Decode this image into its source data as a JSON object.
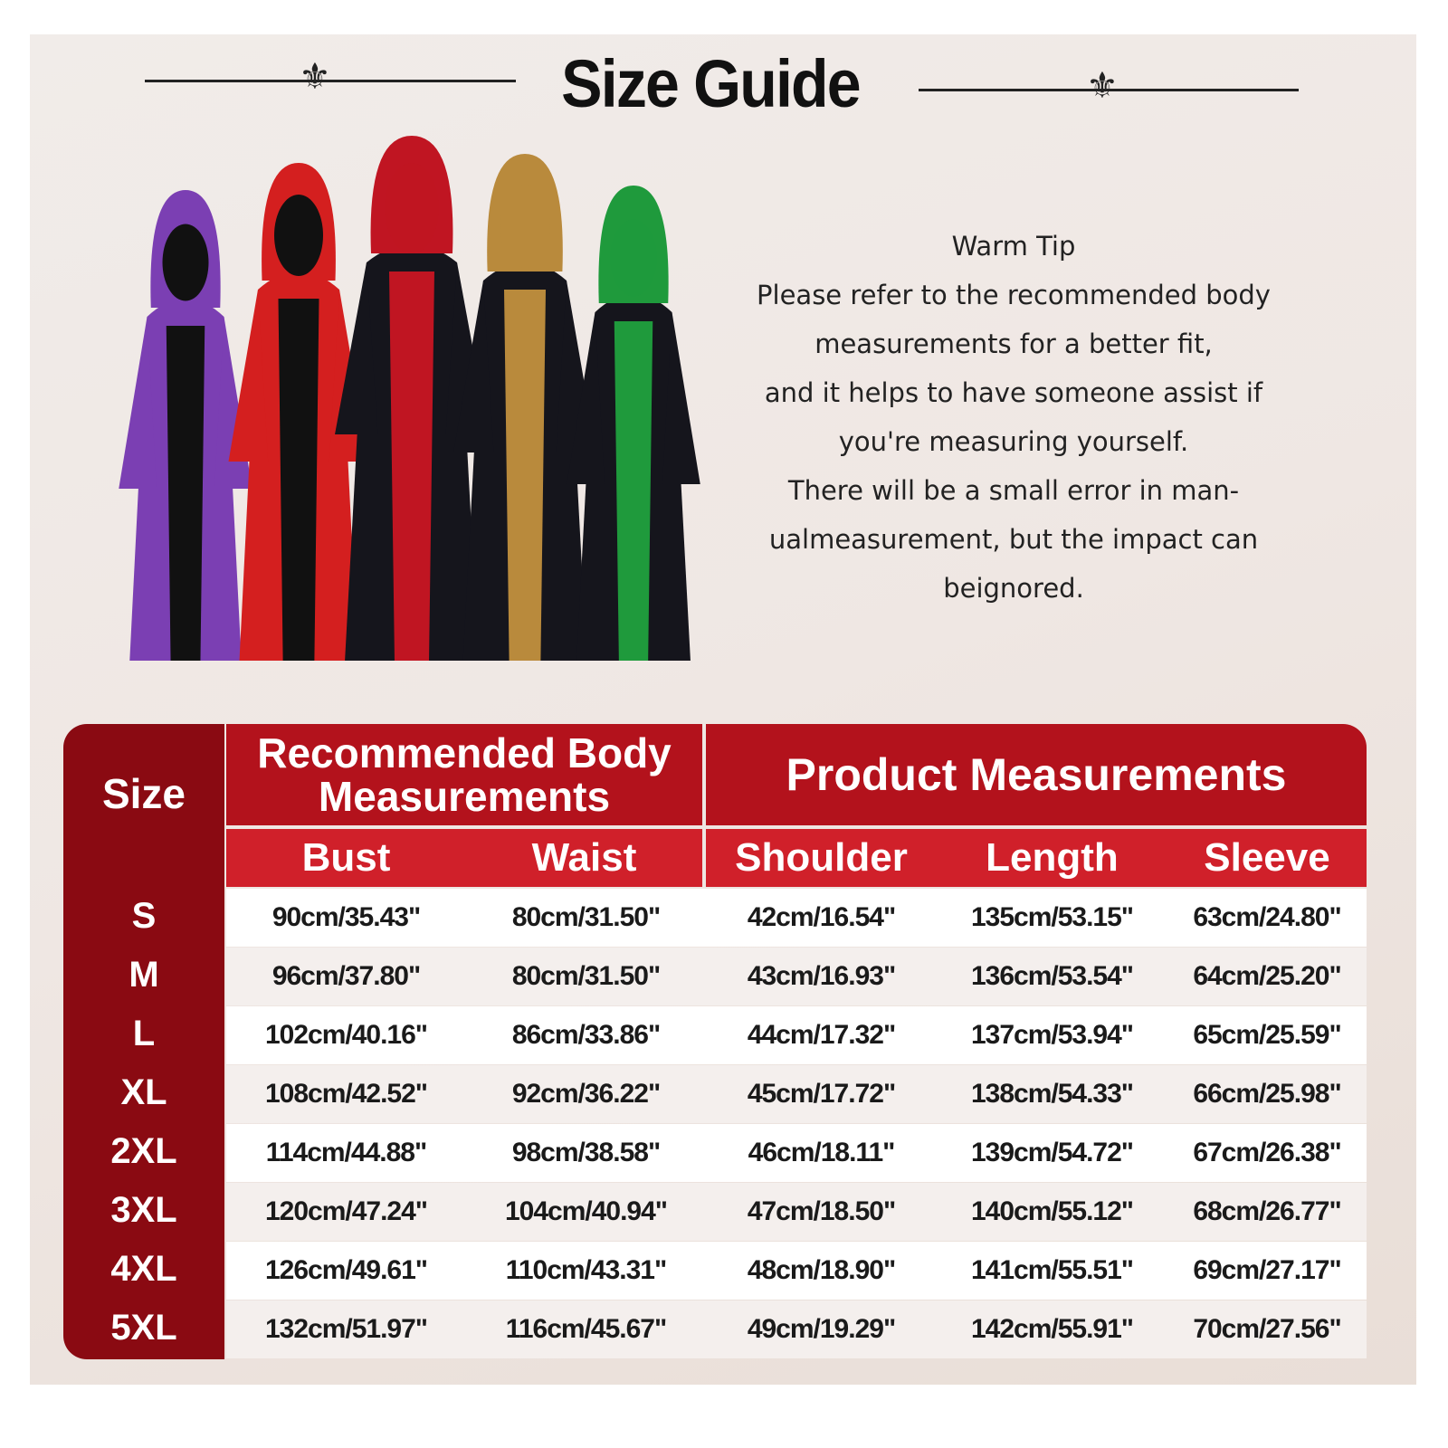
{
  "title": "Size Guide",
  "warm_tip": {
    "heading": "Warm Tip",
    "lines": [
      "Please refer to the recommended body",
      "measurements for a better fit,",
      "and it helps to have someone assist if",
      "you're measuring yourself.",
      "There will be a small error in man-",
      "ualmeasurement, but the impact can",
      "beignored."
    ]
  },
  "product_colors": [
    "#7b3fb3",
    "#d41f1f",
    "#c01522",
    "#b98a3c",
    "#1f9a3c"
  ],
  "table": {
    "size_header": "Size",
    "group_headers": [
      "Recommended Body Measurements",
      "Product Measurements"
    ],
    "columns": [
      "Bust",
      "Waist",
      "Shoulder",
      "Length",
      "Sleeve"
    ],
    "rows": [
      {
        "size": "S",
        "values": [
          "90cm/35.43\"",
          "80cm/31.50\"",
          "42cm/16.54\"",
          "135cm/53.15\"",
          "63cm/24.80\""
        ]
      },
      {
        "size": "M",
        "values": [
          "96cm/37.80\"",
          "80cm/31.50\"",
          "43cm/16.93\"",
          "136cm/53.54\"",
          "64cm/25.20\""
        ]
      },
      {
        "size": "L",
        "values": [
          "102cm/40.16\"",
          "86cm/33.86\"",
          "44cm/17.32\"",
          "137cm/53.94\"",
          "65cm/25.59\""
        ]
      },
      {
        "size": "XL",
        "values": [
          "108cm/42.52\"",
          "92cm/36.22\"",
          "45cm/17.72\"",
          "138cm/54.33\"",
          "66cm/25.98\""
        ]
      },
      {
        "size": "2XL",
        "values": [
          "114cm/44.88\"",
          "98cm/38.58\"",
          "46cm/18.11\"",
          "139cm/54.72\"",
          "67cm/26.38\""
        ]
      },
      {
        "size": "3XL",
        "values": [
          "120cm/47.24\"",
          "104cm/40.94\"",
          "47cm/18.50\"",
          "140cm/55.12\"",
          "68cm/26.77\""
        ]
      },
      {
        "size": "4XL",
        "values": [
          "126cm/49.61\"",
          "110cm/43.31\"",
          "48cm/18.90\"",
          "141cm/55.51\"",
          "69cm/27.17\""
        ]
      },
      {
        "size": "5XL",
        "values": [
          "132cm/51.97\"",
          "116cm/45.67\"",
          "49cm/19.29\"",
          "142cm/55.91\"",
          "70cm/27.56\""
        ]
      }
    ]
  },
  "colors": {
    "dark_red": "#8a0a12",
    "header_red": "#b3121c",
    "subheader_red": "#d0202a"
  }
}
